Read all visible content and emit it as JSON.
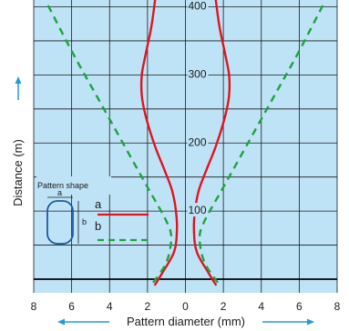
{
  "chart_data": {
    "type": "line",
    "xlabel": "Pattern diameter (mm)",
    "ylabel": "Distance (m)",
    "x_ticks": [
      "8",
      "6",
      "4",
      "2",
      "0",
      "2",
      "4",
      "6",
      "8"
    ],
    "y_tick_labels": [
      "100",
      "200",
      "300",
      "400"
    ],
    "xlim": [
      -8,
      8
    ],
    "ylim": [
      -20,
      410
    ],
    "grid": true,
    "series": [
      {
        "name": "a",
        "color": "#e0141e",
        "style": "solid",
        "left": [
          [
            -1.6,
            -8
          ],
          [
            -1.2,
            10
          ],
          [
            -0.6,
            40
          ],
          [
            -0.45,
            70
          ],
          [
            -0.5,
            100
          ],
          [
            -0.7,
            130
          ],
          [
            -1.1,
            160
          ],
          [
            -1.6,
            195
          ],
          [
            -2.1,
            240
          ],
          [
            -2.3,
            270
          ],
          [
            -2.3,
            300
          ],
          [
            -2.1,
            330
          ],
          [
            -1.8,
            370
          ],
          [
            -1.6,
            410
          ]
        ],
        "right": [
          [
            1.6,
            -8
          ],
          [
            1.2,
            10
          ],
          [
            0.6,
            40
          ],
          [
            0.45,
            70
          ],
          [
            0.5,
            100
          ],
          [
            0.7,
            130
          ],
          [
            1.1,
            160
          ],
          [
            1.6,
            195
          ],
          [
            2.1,
            240
          ],
          [
            2.3,
            270
          ],
          [
            2.3,
            300
          ],
          [
            2.1,
            330
          ],
          [
            1.8,
            370
          ],
          [
            1.6,
            410
          ]
        ]
      },
      {
        "name": "b",
        "color": "#1aa53a",
        "style": "dashed",
        "left": [
          [
            -1.7,
            -5
          ],
          [
            -1.0,
            25
          ],
          [
            -0.75,
            60
          ],
          [
            -1.0,
            85
          ],
          [
            -2.0,
            135
          ],
          [
            -3.2,
            195
          ],
          [
            -4.6,
            265
          ],
          [
            -5.9,
            330
          ],
          [
            -7.3,
            405
          ]
        ],
        "right": [
          [
            1.7,
            -5
          ],
          [
            1.0,
            25
          ],
          [
            0.75,
            60
          ],
          [
            1.0,
            85
          ],
          [
            2.0,
            135
          ],
          [
            3.2,
            195
          ],
          [
            4.6,
            265
          ],
          [
            5.9,
            330
          ],
          [
            7.3,
            405
          ]
        ]
      }
    ]
  },
  "legend": {
    "title": "Pattern shape",
    "dim_a": "a",
    "dim_b": "b",
    "entries": [
      {
        "label": "a",
        "color": "#e0141e",
        "style": "solid"
      },
      {
        "label": "b",
        "color": "#1aa53a",
        "style": "dashed"
      }
    ]
  },
  "colors": {
    "plot_bg": "#bfe3f6",
    "grid": "#1a1a1a",
    "arrow": "#1e9be0",
    "shape": "#1a5aa0"
  }
}
